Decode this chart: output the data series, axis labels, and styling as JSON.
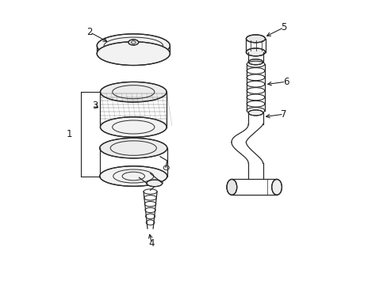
{
  "background_color": "#ffffff",
  "line_color": "#2a2a2a",
  "label_color": "#1a1a1a",
  "figsize": [
    4.89,
    3.6
  ],
  "dpi": 100
}
